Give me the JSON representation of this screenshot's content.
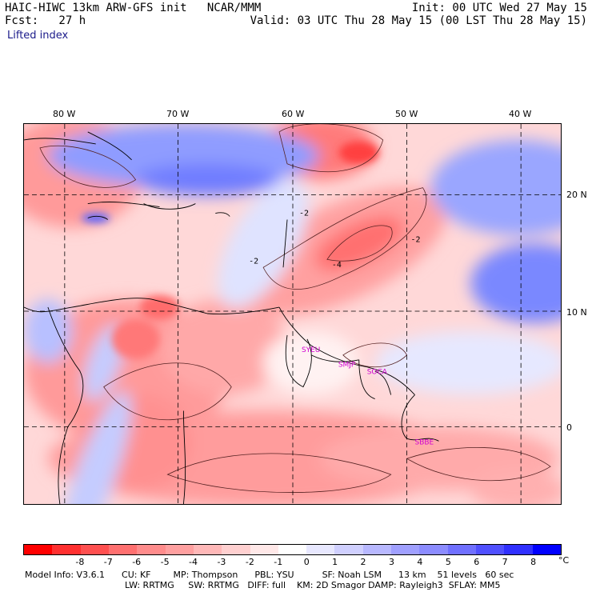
{
  "header": {
    "left_line1": "HAIC-HIWC 13km ARW-GFS init   NCAR/MMM",
    "left_line2": "Fcst:   27 h",
    "right_line1": "Init: 00 UTC Wed 27 May 15",
    "right_line2": "Valid: 03 UTC Thu 28 May 15 (00 LST Thu 28 May 15)"
  },
  "field_name": "Lifted index",
  "map": {
    "lon_labels": [
      "80 W",
      "70 W",
      "60 W",
      "50 W",
      "40 W"
    ],
    "lat_labels": [
      "20 N",
      "10 N",
      "0"
    ],
    "contour_labels": [
      "-2",
      "-4",
      "-2",
      "-2"
    ],
    "sites": [
      "SYEU",
      "SMJP",
      "SOCA",
      "SBBE"
    ]
  },
  "colorbar": {
    "colors": [
      "#ff0000",
      "#ff3030",
      "#ff5050",
      "#ff7070",
      "#ff8c8c",
      "#ffa0a0",
      "#ffb8b8",
      "#ffd0d0",
      "#ffe8e8",
      "#ffffff",
      "#e8e8ff",
      "#d0d0ff",
      "#b8b8ff",
      "#a0a0ff",
      "#8c8cff",
      "#7070ff",
      "#5050ff",
      "#3030ff",
      "#0000ff"
    ],
    "ticks": [
      "-8",
      "-7",
      "-6",
      "-5",
      "-4",
      "-3",
      "-2",
      "-1",
      "0",
      "1",
      "2",
      "3",
      "4",
      "5",
      "6",
      "7",
      "8"
    ],
    "unit": "°C"
  },
  "model_info": {
    "line1": "Model Info: V3.6.1      CU: KF        MP: Thompson      PBL: YSU          SF: Noah LSM      13 km    51 levels   60 sec",
    "line2": "LW: RRTMG     SW: RRTMG   DIFF: full    KM: 2D Smagor DAMP: Rayleigh3  SFLAY: MM5"
  }
}
